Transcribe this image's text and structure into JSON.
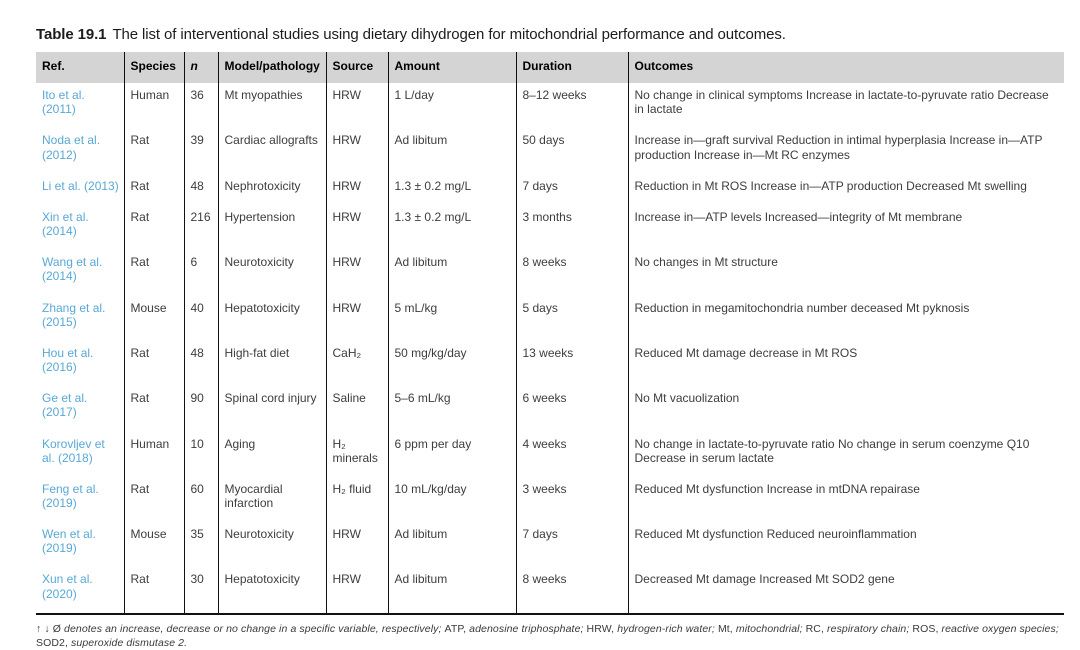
{
  "title": {
    "label": "Table 19.1",
    "text": "The list of interventional studies using dietary dihydrogen for mitochondrial performance and outcomes."
  },
  "colors": {
    "header_bg": "#d4d4d4",
    "ref_link": "#58a8d6",
    "body_text": "#3d3d3d",
    "border": "#111111"
  },
  "table": {
    "columns": [
      {
        "key": "ref",
        "label": "Ref."
      },
      {
        "key": "species",
        "label": "Species"
      },
      {
        "key": "n",
        "label": "n"
      },
      {
        "key": "model",
        "label": "Model/pathology"
      },
      {
        "key": "source",
        "label": "Source"
      },
      {
        "key": "amount",
        "label": "Amount"
      },
      {
        "key": "duration",
        "label": "Duration"
      },
      {
        "key": "outcomes",
        "label": "Outcomes"
      }
    ],
    "rows": [
      {
        "ref": "Ito et al. (2011)",
        "species": "Human",
        "n": "36",
        "model": "Mt myopathies",
        "source": "HRW",
        "amount": "1 L/day",
        "duration": "8–12 weeks",
        "outcomes": "No change in clinical symptoms Increase in lactate-to-pyruvate ratio Decrease in lactate"
      },
      {
        "ref": "Noda et al. (2012)",
        "species": "Rat",
        "n": "39",
        "model": "Cardiac allografts",
        "source": "HRW",
        "amount": "Ad libitum",
        "duration": "50 days",
        "outcomes": "Increase in—graft survival Reduction in intimal hyperplasia Increase in—ATP production Increase in—Mt RC enzymes"
      },
      {
        "ref": "Li et al. (2013)",
        "species": "Rat",
        "n": "48",
        "model": "Nephrotoxicity",
        "source": "HRW",
        "amount": "1.3 ± 0.2 mg/L",
        "duration": "7 days",
        "outcomes": "Reduction in Mt ROS Increase in—ATP production Decreased Mt swelling"
      },
      {
        "ref": "Xin et al. (2014)",
        "species": "Rat",
        "n": "216",
        "model": "Hypertension",
        "source": "HRW",
        "amount": "1.3 ± 0.2 mg/L",
        "duration": "3 months",
        "outcomes": "Increase in—ATP levels Increased—integrity of Mt membrane"
      },
      {
        "ref": "Wang et al. (2014)",
        "species": "Rat",
        "n": "6",
        "model": "Neurotoxicity",
        "source": "HRW",
        "amount": "Ad libitum",
        "duration": "8 weeks",
        "outcomes": "No changes in Mt structure"
      },
      {
        "ref": "Zhang et al. (2015)",
        "species": "Mouse",
        "n": "40",
        "model": "Hepatotoxicity",
        "source": "HRW",
        "amount": "5 mL/kg",
        "duration": "5 days",
        "outcomes": "Reduction in megamitochondria number deceased Mt pyknosis"
      },
      {
        "ref": "Hou et al. (2016)",
        "species": "Rat",
        "n": "48",
        "model": "High-fat diet",
        "source": "CaH₂",
        "amount": "50 mg/kg/day",
        "duration": "13 weeks",
        "outcomes": "Reduced Mt damage decrease in Mt ROS"
      },
      {
        "ref": "Ge et al. (2017)",
        "species": "Rat",
        "n": "90",
        "model": "Spinal cord injury",
        "source": "Saline",
        "amount": "5–6 mL/kg",
        "duration": "6 weeks",
        "outcomes": "No Mt vacuolization"
      },
      {
        "ref": "Korovljev et al. (2018)",
        "species": "Human",
        "n": "10",
        "model": "Aging",
        "source": "H₂ minerals",
        "amount": "6 ppm per day",
        "duration": "4 weeks",
        "outcomes": "No change in lactate-to-pyruvate ratio No change in serum coenzyme Q10 Decrease in serum lactate"
      },
      {
        "ref": "Feng et al. (2019)",
        "species": "Rat",
        "n": "60",
        "model": "Myocardial infarction",
        "source": "H₂ fluid",
        "amount": "10 mL/kg/day",
        "duration": "3 weeks",
        "outcomes": "Reduced Mt dysfunction Increase in mtDNA repairase"
      },
      {
        "ref": "Wen et al. (2019)",
        "species": "Mouse",
        "n": "35",
        "model": "Neurotoxicity",
        "source": "HRW",
        "amount": "Ad libitum",
        "duration": "7 days",
        "outcomes": "Reduced Mt dysfunction Reduced neuroinflammation"
      },
      {
        "ref": "Xun et al. (2020)",
        "species": "Rat",
        "n": "30",
        "model": "Hepatotoxicity",
        "source": "HRW",
        "amount": "Ad libitum",
        "duration": "8 weeks",
        "outcomes": "Decreased Mt damage Increased Mt SOD2 gene"
      }
    ]
  },
  "footnote": {
    "segments": [
      {
        "text": "↑ ↓ Ø ",
        "italic": false
      },
      {
        "text": "denotes an increase, decrease or no change in a specific variable, respectively; ",
        "italic": true
      },
      {
        "text": "ATP, ",
        "italic": false
      },
      {
        "text": "adenosine triphosphate; ",
        "italic": true
      },
      {
        "text": "HRW, ",
        "italic": false
      },
      {
        "text": "hydrogen-rich water; ",
        "italic": true
      },
      {
        "text": "Mt, ",
        "italic": false
      },
      {
        "text": "mitochondrial; ",
        "italic": true
      },
      {
        "text": "RC, ",
        "italic": false
      },
      {
        "text": "respiratory chain; ",
        "italic": true
      },
      {
        "text": "ROS, ",
        "italic": false
      },
      {
        "text": "reactive oxygen species; ",
        "italic": true
      },
      {
        "text": "SOD2, ",
        "italic": false
      },
      {
        "text": "superoxide dismutase 2.",
        "italic": true
      }
    ]
  }
}
